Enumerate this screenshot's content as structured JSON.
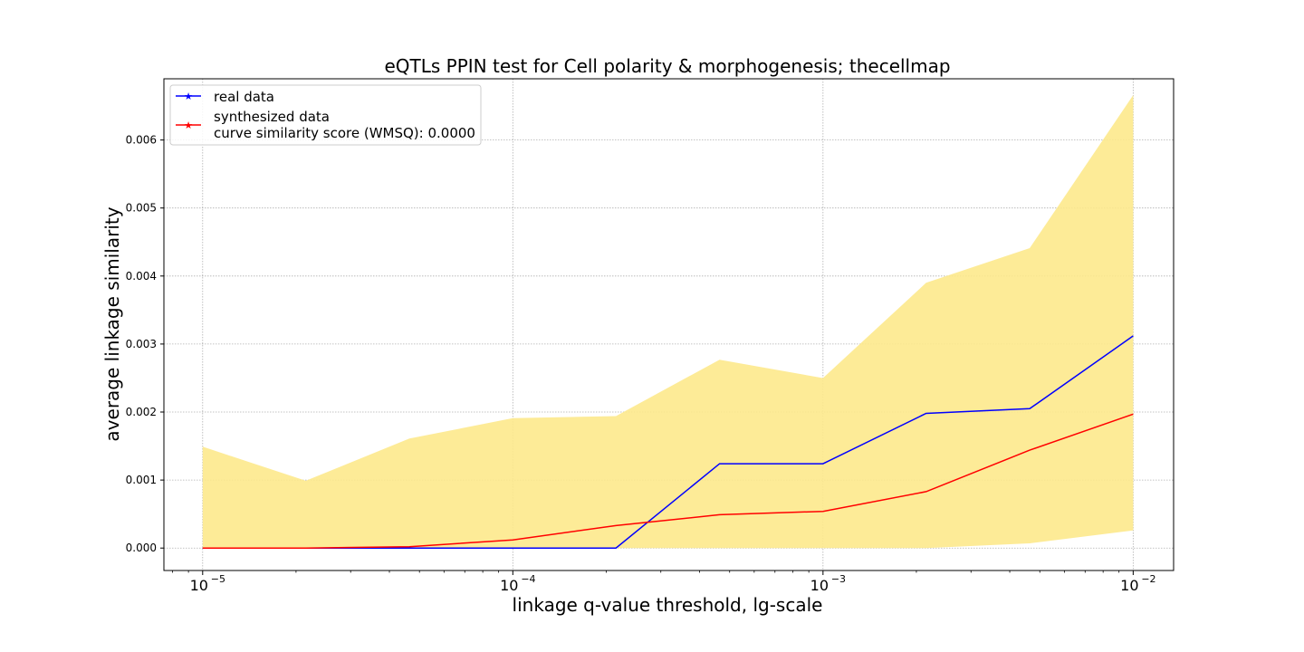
{
  "chart_data": {
    "type": "line",
    "title": "eQTLs PPIN test for Cell polarity & morphogenesis; thecellmap",
    "xlabel": "linkage q-value threshold, lg-scale",
    "ylabel": "average linkage similarity",
    "xscale": "log",
    "xlim": [
      7.5e-06,
      0.0135
    ],
    "ylim": [
      -0.00033,
      0.0069
    ],
    "grid": true,
    "legend_position": "top-left",
    "x": [
      1e-05,
      2.15e-05,
      4.64e-05,
      0.0001,
      0.000215,
      0.000464,
      0.001,
      0.00215,
      0.00464,
      0.01
    ],
    "xticks": [
      {
        "value": 1e-05,
        "base": "10",
        "exp": "−5"
      },
      {
        "value": 0.0001,
        "base": "10",
        "exp": "−4"
      },
      {
        "value": 0.001,
        "base": "10",
        "exp": "−3"
      },
      {
        "value": 0.01,
        "base": "10",
        "exp": "−2"
      }
    ],
    "yticks": [
      "0.000",
      "0.001",
      "0.002",
      "0.003",
      "0.004",
      "0.005",
      "0.006"
    ],
    "series": [
      {
        "name": "real data",
        "color": "#0000ff",
        "values": [
          0.0,
          0.0,
          0.0,
          0.0,
          0.0,
          0.00124,
          0.00124,
          0.00198,
          0.00205,
          0.00312
        ]
      },
      {
        "name": "synthesized data",
        "color": "#ff0000",
        "values": [
          0.0,
          0.0,
          2e-05,
          0.00012,
          0.00033,
          0.00049,
          0.00054,
          0.00083,
          0.00144,
          0.00197
        ]
      }
    ],
    "band": {
      "color": "#fde98c",
      "upper": [
        0.00149,
        0.00099,
        0.00161,
        0.00191,
        0.00194,
        0.00277,
        0.0025,
        0.0039,
        0.00441,
        0.00666
      ],
      "lower": [
        0.0,
        0.0,
        0.0,
        0.0,
        0.0,
        0.0,
        0.0,
        0.0,
        7e-05,
        0.00026
      ]
    },
    "legend": {
      "entries": [
        "real data",
        "synthesized data"
      ],
      "note": "curve similarity score (WMSQ): 0.0000"
    }
  }
}
